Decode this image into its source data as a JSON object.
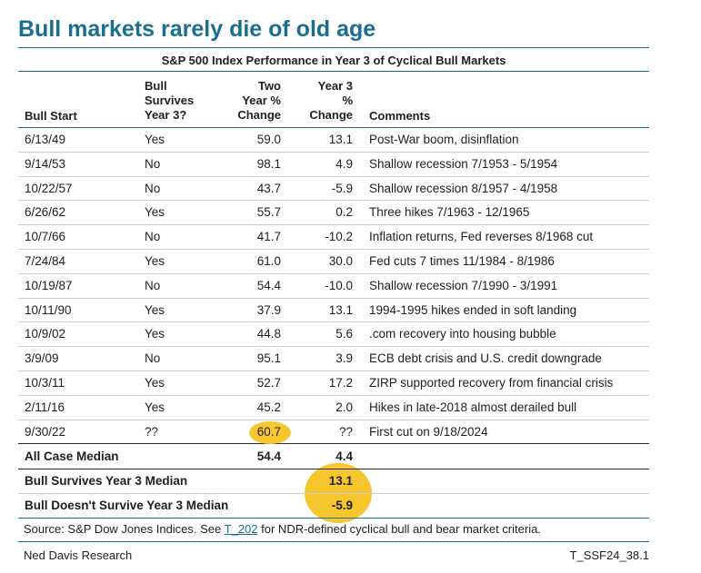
{
  "title": "Bull markets rarely die of old age",
  "table_title": "S&P 500 Index Performance in Year 3 of Cyclical Bull Markets",
  "headers": {
    "bull_start": "Bull Start",
    "survives": [
      "Bull",
      "Survives",
      "Year 3?"
    ],
    "two_year": [
      "Two",
      "Year %",
      "Change"
    ],
    "year3": [
      "Year 3",
      "%",
      "Change"
    ],
    "comments": "Comments"
  },
  "rows": [
    {
      "start": "6/13/49",
      "survives": "Yes",
      "two_year": "59.0",
      "year3": "13.1",
      "comment": "Post-War boom, disinflation"
    },
    {
      "start": "9/14/53",
      "survives": "No",
      "two_year": "98.1",
      "year3": "4.9",
      "comment": "Shallow recession 7/1953 - 5/1954"
    },
    {
      "start": "10/22/57",
      "survives": "No",
      "two_year": "43.7",
      "year3": "-5.9",
      "comment": "Shallow recession 8/1957 - 4/1958"
    },
    {
      "start": "6/26/62",
      "survives": "Yes",
      "two_year": "55.7",
      "year3": "0.2",
      "comment": "Three hikes 7/1963 - 12/1965"
    },
    {
      "start": "10/7/66",
      "survives": "No",
      "two_year": "41.7",
      "year3": "-10.2",
      "comment": "Inflation returns, Fed reverses 8/1968 cut"
    },
    {
      "start": "7/24/84",
      "survives": "Yes",
      "two_year": "61.0",
      "year3": "30.0",
      "comment": "Fed cuts 7 times 11/1984 - 8/1986"
    },
    {
      "start": "10/19/87",
      "survives": "No",
      "two_year": "54.4",
      "year3": "-10.0",
      "comment": "Shallow recession 7/1990 - 3/1991"
    },
    {
      "start": "10/11/90",
      "survives": "Yes",
      "two_year": "37.9",
      "year3": "13.1",
      "comment": "1994-1995 hikes ended in soft landing"
    },
    {
      "start": "10/9/02",
      "survives": "Yes",
      "two_year": "44.8",
      "year3": "5.6",
      "comment": ".com recovery into housing bubble"
    },
    {
      "start": "3/9/09",
      "survives": "No",
      "two_year": "95.1",
      "year3": "3.9",
      "comment": "ECB debt crisis and U.S. credit downgrade"
    },
    {
      "start": "10/3/11",
      "survives": "Yes",
      "two_year": "52.7",
      "year3": "17.2",
      "comment": "ZIRP supported recovery from financial crisis"
    },
    {
      "start": "2/11/16",
      "survives": "Yes",
      "two_year": "45.2",
      "year3": "2.0",
      "comment": "Hikes in late-2018 almost derailed bull"
    },
    {
      "start": "9/30/22",
      "survives": "??",
      "two_year": "60.7",
      "year3": "??",
      "comment": "First cut on 9/18/2024"
    }
  ],
  "summary": {
    "all_case": {
      "label": "All Case Median",
      "two_year": "54.4",
      "year3": "4.4"
    },
    "survives": {
      "label": "Bull Survives Year 3 Median",
      "year3": "13.1"
    },
    "not_survive": {
      "label": "Bull Doesn't Survive Year 3 Median",
      "year3": "-5.9"
    }
  },
  "source": {
    "prefix": "Source: S&P Dow Jones Indices. See ",
    "link": "T_202",
    "suffix": " for NDR-defined cyclical bull and bear market criteria."
  },
  "footer": {
    "left": "Ned Davis Research",
    "right": "T_SSF24_38.1"
  },
  "colors": {
    "title": "#1a6e92",
    "highlight": "#f6c62e"
  }
}
